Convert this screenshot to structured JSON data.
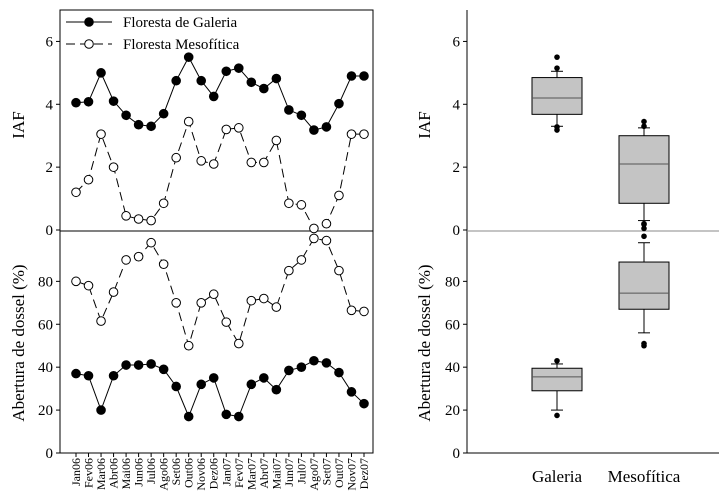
{
  "chart_data": [
    {
      "type": "line",
      "panel": "left-top",
      "ylabel": "IAF",
      "ylim": [
        0,
        7
      ],
      "yticks": [
        0,
        2,
        4,
        6
      ],
      "categories": [
        "Jan06",
        "Fev06",
        "Mar06",
        "Abr06",
        "Mai06",
        "Jun06",
        "Jul06",
        "Ago06",
        "Set06",
        "Out06",
        "Nov06",
        "Dez06",
        "Jan07",
        "Fev07",
        "Mar07",
        "Abr07",
        "Mai07",
        "Jun07",
        "Jul07",
        "Ago07",
        "Set07",
        "Out07",
        "Nov07",
        "Dez07"
      ],
      "legend": {
        "placement": "top-left"
      },
      "series": [
        {
          "name": "Floresta de Galeria",
          "marker": "filled-circle",
          "line": "solid",
          "values": [
            4.05,
            4.08,
            5.0,
            4.1,
            3.65,
            3.35,
            3.3,
            3.7,
            4.75,
            5.5,
            4.75,
            4.25,
            5.05,
            5.15,
            4.7,
            4.5,
            4.82,
            3.82,
            3.65,
            3.18,
            3.28,
            4.02,
            4.9,
            4.9
          ]
        },
        {
          "name": "Floresta Mesofítica",
          "marker": "open-circle",
          "line": "dashed",
          "values": [
            1.2,
            1.6,
            3.05,
            2.0,
            0.45,
            0.35,
            0.3,
            0.85,
            2.3,
            3.45,
            2.2,
            2.1,
            3.2,
            3.25,
            2.15,
            2.15,
            2.85,
            0.85,
            0.8,
            0.05,
            0.2,
            1.1,
            3.05,
            3.05
          ]
        }
      ]
    },
    {
      "type": "line",
      "panel": "left-bottom",
      "ylabel": "Abertura de dossel (%)",
      "ylim": [
        0,
        103
      ],
      "yticks": [
        0,
        20,
        40,
        60,
        80
      ],
      "categories": [
        "Jan06",
        "Fev06",
        "Mar06",
        "Abr06",
        "Mai06",
        "Jun06",
        "Jul06",
        "Ago06",
        "Set06",
        "Out06",
        "Nov06",
        "Dez06",
        "Jan07",
        "Fev07",
        "Mar07",
        "Abr07",
        "Mai07",
        "Jun07",
        "Jul07",
        "Ago07",
        "Set07",
        "Out07",
        "Nov07",
        "Dez07"
      ],
      "series": [
        {
          "name": "Floresta de Galeria",
          "marker": "filled-circle",
          "line": "solid",
          "values": [
            37,
            36,
            20,
            36,
            41,
            41,
            41.5,
            39,
            31,
            17,
            32,
            35,
            18,
            17,
            32,
            35,
            29.5,
            38.5,
            40,
            43,
            42,
            37.5,
            28.5,
            23
          ]
        },
        {
          "name": "Floresta Mesofítica",
          "marker": "open-circle",
          "line": "dashed",
          "values": [
            80,
            78,
            61.5,
            75,
            90,
            91.5,
            98,
            88,
            70,
            50,
            70,
            74,
            61,
            51,
            71,
            72,
            68,
            85,
            90,
            100,
            99,
            85,
            66.5,
            66
          ]
        }
      ]
    },
    {
      "type": "box",
      "panel": "right-top",
      "ylabel": "IAF",
      "ylim": [
        0,
        7
      ],
      "yticks": [
        0,
        2,
        4,
        6
      ],
      "categories": [
        "Galeria",
        "Mesofítica"
      ],
      "boxes": [
        {
          "category": "Galeria",
          "whisker_low": 3.3,
          "q1": 3.68,
          "median": 4.2,
          "q3": 4.85,
          "whisker_high": 5.05,
          "outliers": [
            5.5,
            5.15,
            3.28,
            3.18
          ]
        },
        {
          "category": "Mesofítica",
          "whisker_low": 0.3,
          "q1": 0.85,
          "median": 2.1,
          "q3": 3.0,
          "whisker_high": 3.25,
          "outliers": [
            3.45,
            3.3,
            0.2,
            0.18,
            0.05
          ]
        }
      ]
    },
    {
      "type": "box",
      "panel": "right-bottom",
      "ylabel": "Abertura de dossel (%)",
      "ylim": [
        0,
        103
      ],
      "yticks": [
        0,
        20,
        40,
        60,
        80
      ],
      "categories": [
        "Galeria",
        "Mesofítica"
      ],
      "boxes": [
        {
          "category": "Galeria",
          "whisker_low": 20,
          "q1": 29,
          "median": 35.5,
          "q3": 39.5,
          "whisker_high": 41.5,
          "outliers": [
            43,
            17.5
          ]
        },
        {
          "category": "Mesofítica",
          "whisker_low": 56,
          "q1": 67,
          "median": 74.5,
          "q3": 89,
          "whisker_high": 98,
          "outliers": [
            101,
            51,
            50
          ]
        }
      ]
    }
  ]
}
